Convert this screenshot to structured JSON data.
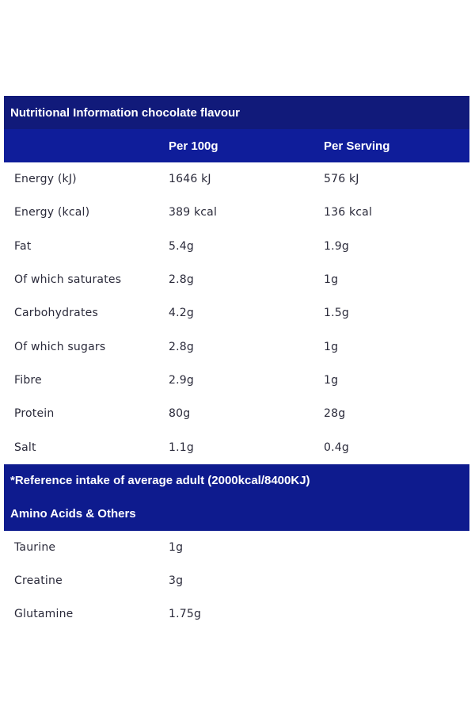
{
  "table": {
    "title": "Nutritional Information chocolate flavour",
    "headers": [
      "",
      "Per 100g",
      "Per Serving"
    ],
    "rows": [
      [
        "Energy (kJ)",
        "1646 kJ",
        "576 kJ"
      ],
      [
        "Energy (kcal)",
        "389 kcal",
        "136 kcal"
      ],
      [
        "Fat",
        "5.4g",
        "1.9g"
      ],
      [
        "Of which saturates",
        "2.8g",
        "1g"
      ],
      [
        "Carbohydrates",
        "4.2g",
        "1.5g"
      ],
      [
        "Of which sugars",
        "2.8g",
        "1g"
      ],
      [
        "Fibre",
        "2.9g",
        "1g"
      ],
      [
        "Protein",
        "80g",
        "28g"
      ],
      [
        "Salt",
        "1.1g",
        "0.4g"
      ]
    ],
    "reference_note": "*Reference intake of average adult (2000kcal/8400KJ)",
    "section_title": "Amino Acids & Others",
    "amino_rows": [
      [
        "Taurine",
        "1g"
      ],
      [
        "Creatine",
        "3g"
      ],
      [
        "Glutamine",
        "1.75g"
      ]
    ]
  },
  "colors": {
    "header_bg": "#0f1a87",
    "text": "#2a2a3a",
    "background": "#ffffff"
  }
}
